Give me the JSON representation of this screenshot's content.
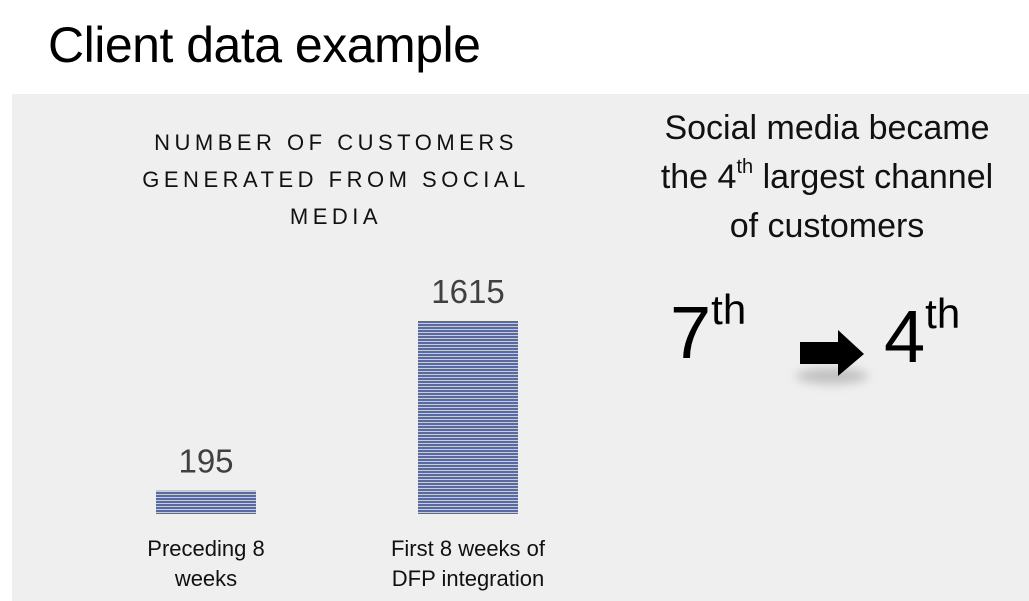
{
  "page": {
    "title": "Client data example"
  },
  "chart_data": {
    "type": "bar",
    "title": "NUMBER OF CUSTOMERS GENERATED FROM SOCIAL MEDIA",
    "title_lines": [
      "NUMBER OF CUSTOMERS",
      "GENERATED FROM SOCIAL",
      "MEDIA"
    ],
    "categories": [
      "Preceding 8 weeks",
      "First 8 weeks of DFP integration"
    ],
    "category_lines": [
      [
        "Preceding 8",
        "weeks"
      ],
      [
        "First 8 weeks of",
        "DFP integration"
      ]
    ],
    "values": [
      195,
      1615
    ],
    "value_labels": [
      "195",
      "1615"
    ],
    "xlabel": "",
    "ylabel": "",
    "axes_visible": false,
    "grid": false,
    "legend": "none",
    "bar_color": "#5a6a9e",
    "bar_stripe_color": "#c5cce0"
  },
  "callout": {
    "line1": "Social media became",
    "line2_pre": "the 4",
    "line2_sup": "th",
    "line2_post": " largest channel",
    "line3": "of customers"
  },
  "ranking": {
    "before_number": "7",
    "before_suffix": "th",
    "after_number": "4",
    "after_suffix": "th"
  },
  "icons": {
    "arrow": "right-arrow-icon"
  },
  "colors": {
    "panel_background": "#efefef",
    "text": "#111111",
    "arrow": "#000000"
  }
}
